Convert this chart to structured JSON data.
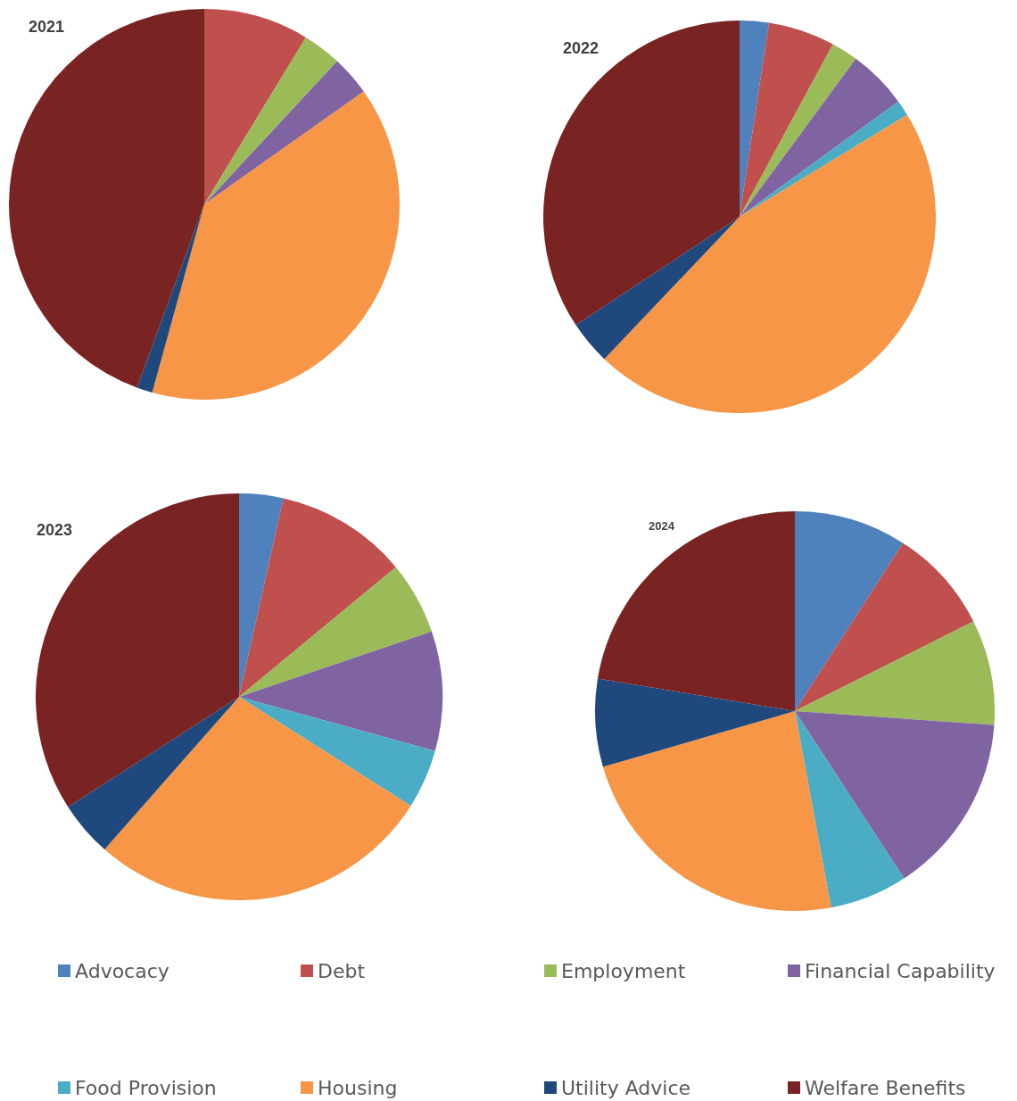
{
  "chart_data": {
    "type": "pie",
    "categories": [
      "Advocacy",
      "Debt",
      "Employment",
      "Financial Capability",
      "Food Provision",
      "Housing",
      "Utility Advice",
      "Welfare Benefits"
    ],
    "colors": [
      "#4f81bd",
      "#c0504d",
      "#9bbb59",
      "#8064a2",
      "#4bacc6",
      "#f79646",
      "#1f497d",
      "#7a2323"
    ],
    "legend": "bottom",
    "series": [
      {
        "name": "2021",
        "values": [
          0,
          8.7,
          3.2,
          3.3,
          0,
          39.1,
          1.3,
          44.4
        ]
      },
      {
        "name": "2022",
        "values": [
          2.4,
          5.5,
          2.2,
          4.9,
          1.3,
          45.8,
          3.6,
          34.3
        ]
      },
      {
        "name": "2023",
        "values": [
          3.5,
          10.5,
          5.8,
          9.5,
          4.7,
          27.5,
          4.4,
          34.1
        ]
      },
      {
        "name": "2024",
        "values": [
          9.1,
          8.5,
          8.5,
          14.7,
          6.3,
          23.4,
          7.1,
          22.4
        ]
      }
    ]
  }
}
